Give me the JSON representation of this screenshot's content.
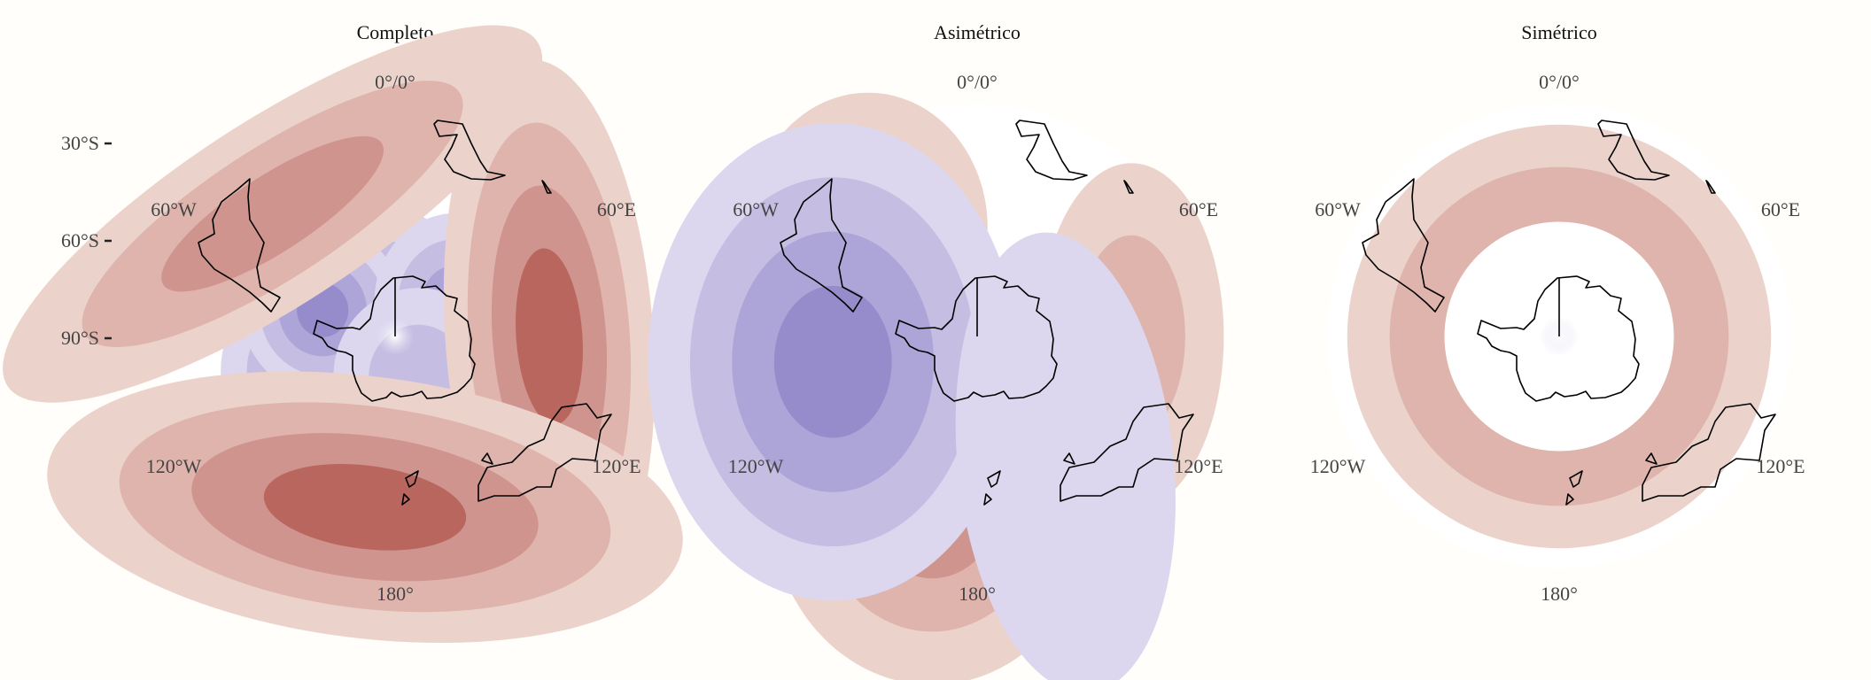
{
  "chart_data": [
    {
      "type": "heatmap",
      "title": "Completo",
      "projection": "south-polar-stereographic",
      "lon_labels": {
        "top": "0°/0°",
        "upper_left": "60°W",
        "upper_right": "60°E",
        "lower_left": "120°W",
        "lower_right": "120°E",
        "bottom": "180°"
      },
      "lat_ticks": [
        "30°S",
        "60°S",
        "90°S"
      ],
      "features": [
        {
          "sign": "negative",
          "lat": -85,
          "lon": -30,
          "rx": 25,
          "ry": 29,
          "levels": 3
        },
        {
          "sign": "negative",
          "lat": -66,
          "lon": -112,
          "rx": 23,
          "ry": 25,
          "levels": 3
        },
        {
          "sign": "negative",
          "lat": -70,
          "lon": -70,
          "rx": 21,
          "ry": 22,
          "levels": 4
        },
        {
          "sign": "negative",
          "lat": -72,
          "lon": 60,
          "rx": 21,
          "ry": 23,
          "levels": 3
        },
        {
          "sign": "negative",
          "lat": -78,
          "lon": 150,
          "rx": 22,
          "ry": 23,
          "levels": 2
        },
        {
          "sign": "positive",
          "lat": -45,
          "lon": -45,
          "rx": 82,
          "ry": 24,
          "rot": -33,
          "levels": 3
        },
        {
          "sign": "positive",
          "lat": -50,
          "lon": 90,
          "rx": 27,
          "ry": 72,
          "rot": -4,
          "levels": 4
        },
        {
          "sign": "positive",
          "lat": -45,
          "lon": -170,
          "rx": 83,
          "ry": 34,
          "rot": 7,
          "levels": 4
        }
      ]
    },
    {
      "type": "heatmap",
      "title": "Asimétrico",
      "projection": "south-polar-stereographic",
      "lon_labels": {
        "top": "0°/0°",
        "upper_left": "60°W",
        "upper_right": "60°E",
        "lower_left": "120°W",
        "lower_right": "120°E",
        "bottom": "180°"
      },
      "features": [
        {
          "sign": "positive",
          "lat": -50,
          "lon": -45,
          "rx": 31,
          "ry": 35,
          "levels": 2
        },
        {
          "sign": "positive",
          "lat": -50,
          "lon": 90,
          "rx": 24,
          "ry": 45,
          "levels": 2
        },
        {
          "sign": "positive",
          "lat": -45,
          "lon": -165,
          "rx": 42,
          "ry": 47,
          "levels": 3
        },
        {
          "sign": "negative",
          "lat": -52,
          "lon": -100,
          "rx": 48,
          "ry": 62,
          "levels": 4
        },
        {
          "sign": "negative",
          "lat": -50,
          "lon": 145,
          "rx": 28,
          "ry": 60,
          "rot": -6,
          "levels": 1
        }
      ]
    },
    {
      "type": "heatmap",
      "title": "Simétrico",
      "projection": "south-polar-stereographic",
      "lon_labels": {
        "top": "0°/0°",
        "upper_left": "60°W",
        "upper_right": "60°E",
        "lower_left": "120°W",
        "lower_right": "120°E",
        "bottom": "180°"
      },
      "features": [
        {
          "sign": "negative-zonal",
          "lat_range": [
            -90,
            -60
          ],
          "levels": 7
        },
        {
          "sign": "positive-zonal",
          "lat_range": [
            -57,
            -35
          ],
          "levels": 2
        }
      ]
    }
  ],
  "colors": {
    "background": "#fffefa",
    "disc": "#ffffff",
    "positive": [
      "#ebd3cc",
      "#dfb4ad",
      "#cf948d",
      "#b9665f"
    ],
    "negative": [
      "#dcd7ee",
      "#c5bde2",
      "#ada4d8",
      "#968ccb",
      "#8077c1",
      "#6a60b5",
      "#574aab",
      "#4233a2"
    ],
    "center_glow": [
      "#ffffff",
      "#e2def1"
    ],
    "coastline": "#000000",
    "title": "#111111",
    "label": "#444444"
  }
}
